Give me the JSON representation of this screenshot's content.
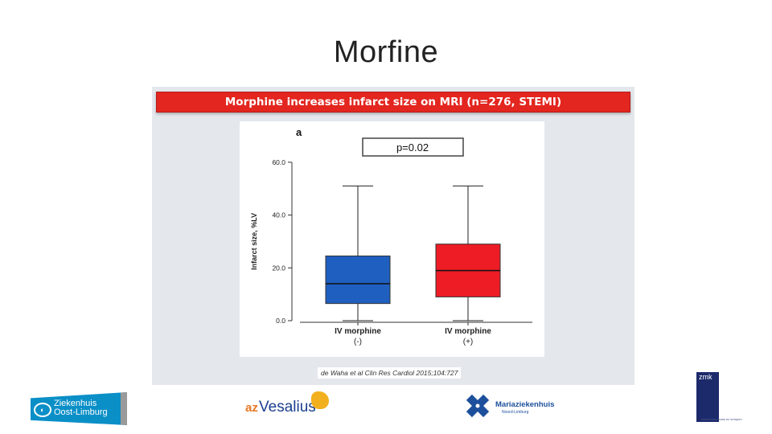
{
  "slide": {
    "title": "Morfine"
  },
  "figure": {
    "banner": "Morphine increases infarct size on MRI (n=276, STEMI)",
    "citation": "de Waha et al Clin Res Cardiol 2015;104:727"
  },
  "chart_data": {
    "type": "boxplot",
    "panel_label": "a",
    "annotation": "p=0.02",
    "ylabel": "Infarct size, %LV",
    "ylim": [
      0,
      70
    ],
    "yticks": [
      0,
      20,
      40,
      60
    ],
    "ytick_labels": [
      "0.0",
      "20.0",
      "40.0",
      "60.0"
    ],
    "categories": [
      {
        "line1": "IV morphine",
        "line2": "(-)"
      },
      {
        "line1": "IV morphine",
        "line2": "(+)"
      }
    ],
    "boxes": [
      {
        "min": 0,
        "q1": 6.5,
        "median": 14,
        "q3": 24.5,
        "max": 51,
        "color": "#1f5fbf"
      },
      {
        "min": 0,
        "q1": 9,
        "median": 19,
        "q3": 29,
        "max": 51,
        "color": "#ee1c25"
      }
    ],
    "grid": false
  },
  "logos": {
    "zol": {
      "line1": "Ziekenhuis",
      "line2": "Oost-Limburg",
      "mark": "zol-logo-icon"
    },
    "azv": {
      "prefix": "az",
      "name": "Vesalius",
      "mark": "az-vesalius-logo-icon"
    },
    "mzk": {
      "name": "Mariaziekenhuis",
      "sub": "Noord-Limburg",
      "mark": "mariaziekenhuis-cross-icon"
    },
    "zmk": {
      "label": "zmk",
      "foot": "ziekenhuis maas en kempen",
      "mark": "zmk-star-logo-icon"
    }
  }
}
